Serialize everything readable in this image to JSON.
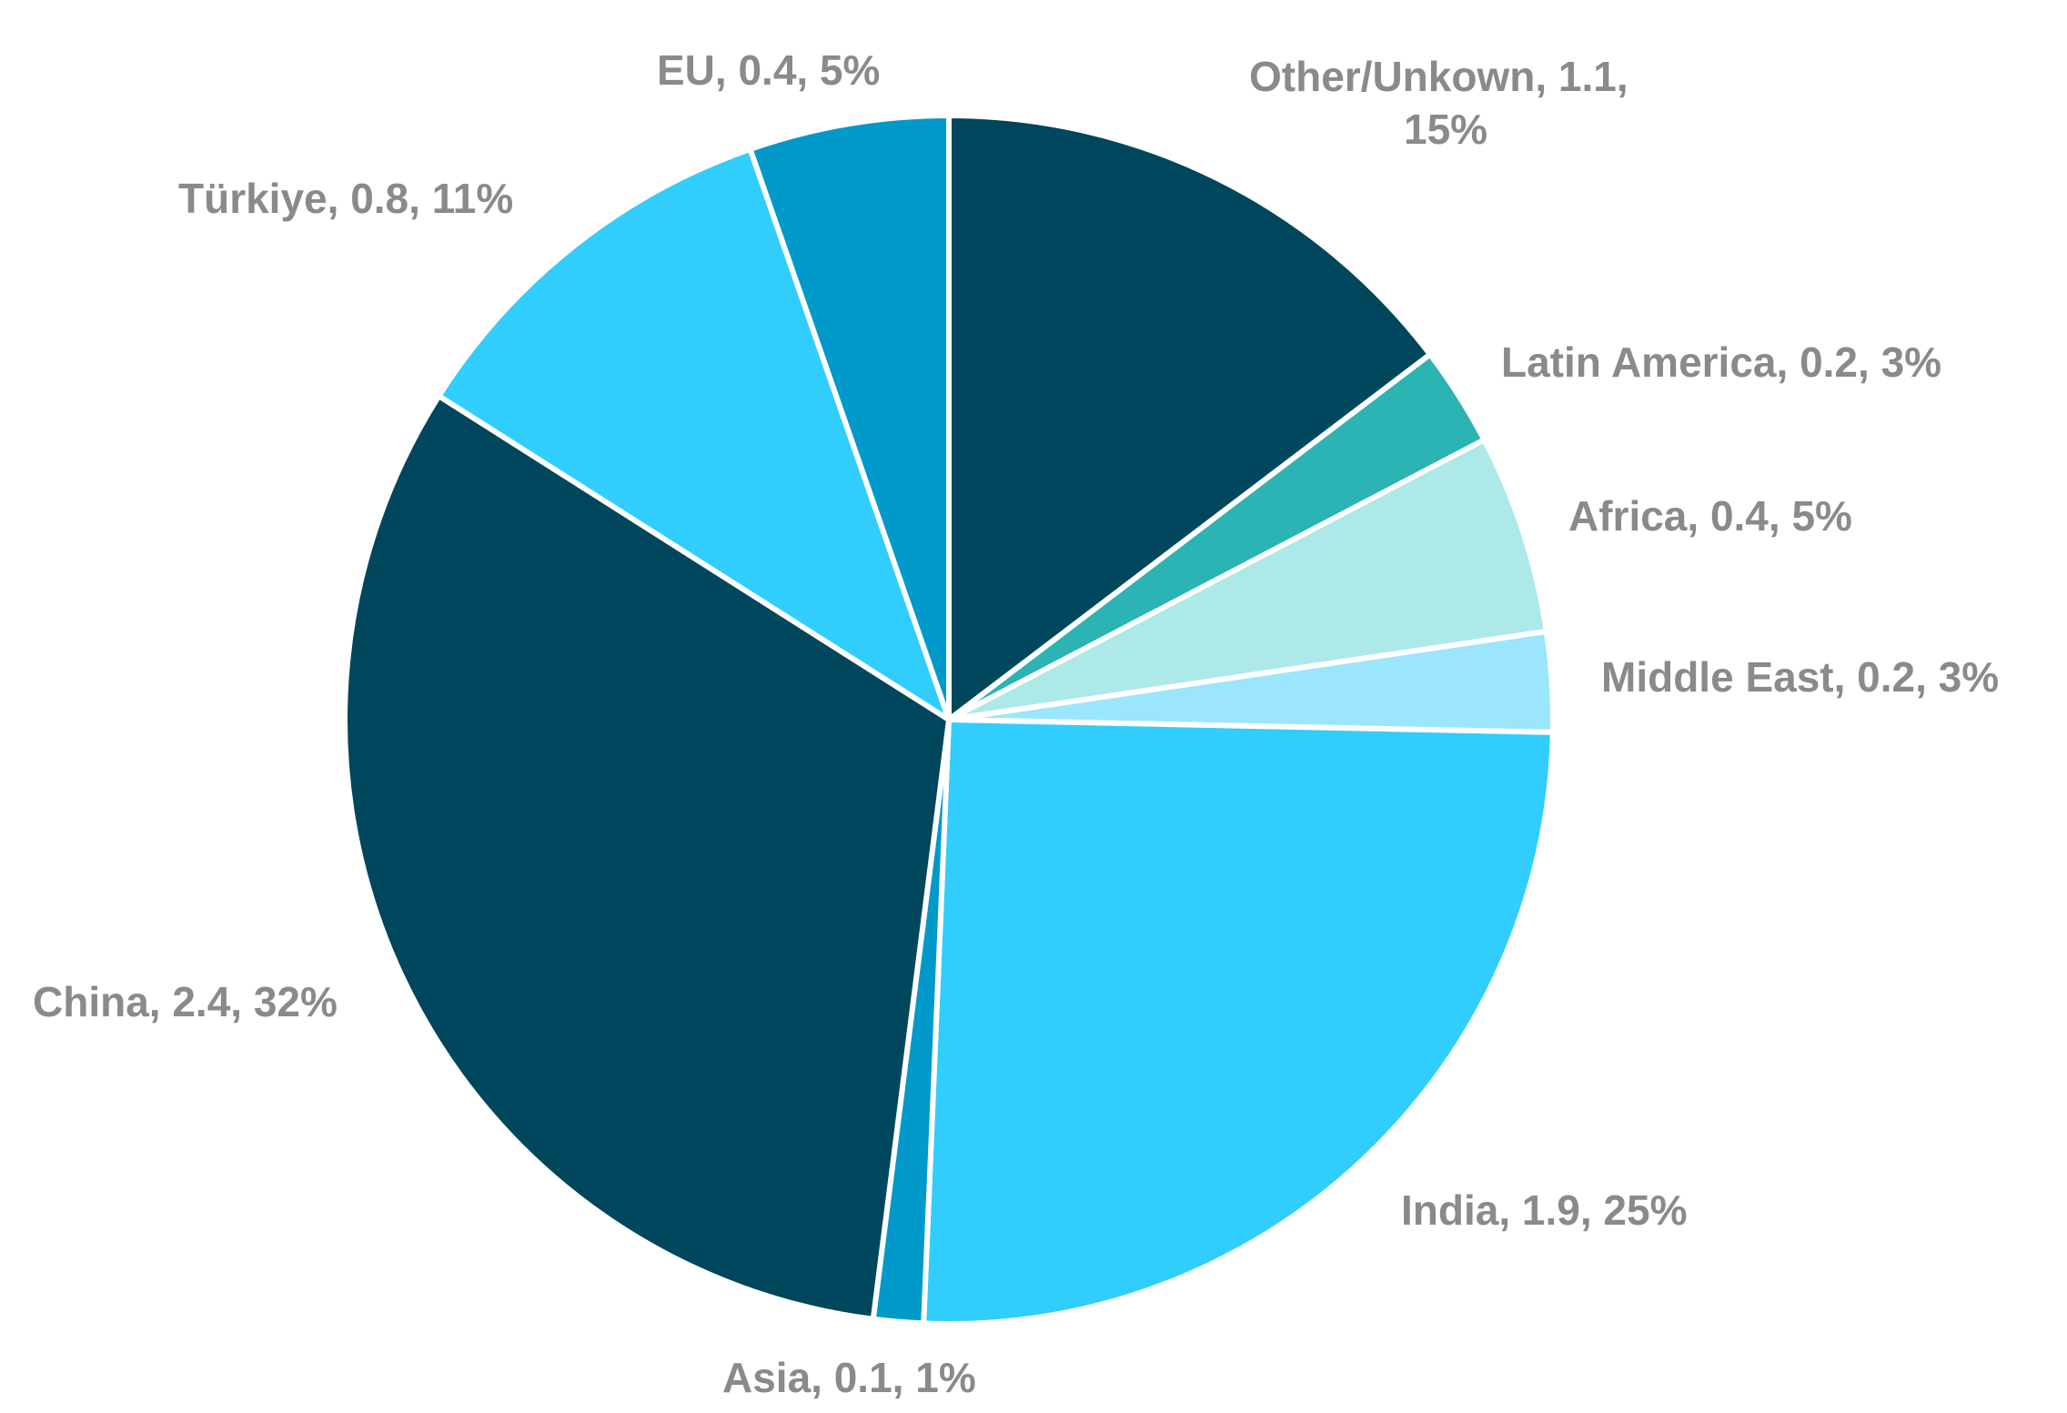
{
  "chart_data": {
    "type": "pie",
    "title": "",
    "start_angle_deg": 0,
    "direction": "clockwise",
    "slices": [
      {
        "name": "Other/Unkown",
        "value": 1.1,
        "percent": "15%",
        "color": "#00465c",
        "label_lines": [
          "Other/Unkown, 1.1,",
          "15%"
        ]
      },
      {
        "name": "Latin America",
        "value": 0.2,
        "percent": "3%",
        "color": "#2cb3b3",
        "label_lines": [
          "Latin America, 0.2, 3%"
        ]
      },
      {
        "name": "Africa",
        "value": 0.4,
        "percent": "5%",
        "color": "#aee9e9",
        "label_lines": [
          "Africa, 0.4, 5%"
        ]
      },
      {
        "name": "Middle East",
        "value": 0.2,
        "percent": "3%",
        "color": "#9be6fc",
        "label_lines": [
          "Middle East, 0.2, 3%"
        ]
      },
      {
        "name": "India",
        "value": 1.9,
        "percent": "25%",
        "color": "#31cdfd",
        "label_lines": [
          "India, 1.9, 25%"
        ]
      },
      {
        "name": "Asia",
        "value": 0.1,
        "percent": "1%",
        "color": "#0099c9",
        "label_lines": [
          "Asia, 0.1, 1%"
        ]
      },
      {
        "name": "China",
        "value": 2.4,
        "percent": "32%",
        "color": "#00465c",
        "label_lines": [
          "China, 2.4, 32%"
        ]
      },
      {
        "name": "Türkiye",
        "value": 0.8,
        "percent": "11%",
        "color": "#31cdfd",
        "label_lines": [
          "Türkiye, 0.8, 11%"
        ]
      },
      {
        "name": "EU",
        "value": 0.4,
        "percent": "5%",
        "color": "#0099c9",
        "label_lines": [
          "EU, 0.4, 5%"
        ]
      }
    ]
  }
}
